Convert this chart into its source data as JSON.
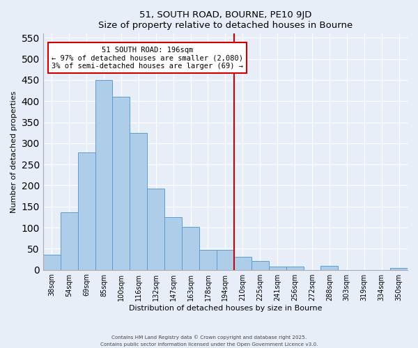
{
  "title": "51, SOUTH ROAD, BOURNE, PE10 9JD",
  "subtitle": "Size of property relative to detached houses in Bourne",
  "xlabel": "Distribution of detached houses by size in Bourne",
  "ylabel": "Number of detached properties",
  "bar_labels": [
    "38sqm",
    "54sqm",
    "69sqm",
    "85sqm",
    "100sqm",
    "116sqm",
    "132sqm",
    "147sqm",
    "163sqm",
    "178sqm",
    "194sqm",
    "210sqm",
    "225sqm",
    "241sqm",
    "256sqm",
    "272sqm",
    "288sqm",
    "303sqm",
    "319sqm",
    "334sqm",
    "350sqm"
  ],
  "bar_heights": [
    35,
    137,
    278,
    450,
    410,
    325,
    192,
    125,
    101,
    48,
    48,
    31,
    20,
    7,
    8,
    0,
    9,
    0,
    0,
    0,
    5
  ],
  "bar_color": "#aecde8",
  "bar_edge_color": "#5b9bd5",
  "vline_x": 10.5,
  "vline_color": "#cc0000",
  "annotation_title": "51 SOUTH ROAD: 196sqm",
  "annotation_line1": "← 97% of detached houses are smaller (2,080)",
  "annotation_line2": "3% of semi-detached houses are larger (69) →",
  "annotation_box_color": "#ffffff",
  "annotation_box_edge_color": "#cc0000",
  "ylim": [
    0,
    560
  ],
  "yticks": [
    0,
    50,
    100,
    150,
    200,
    250,
    300,
    350,
    400,
    450,
    500,
    550
  ],
  "footnote1": "Contains HM Land Registry data © Crown copyright and database right 2025.",
  "footnote2": "Contains public sector information licensed under the Open Government Licence v3.0.",
  "bg_color": "#e8eef8",
  "grid_color": "#ffffff"
}
